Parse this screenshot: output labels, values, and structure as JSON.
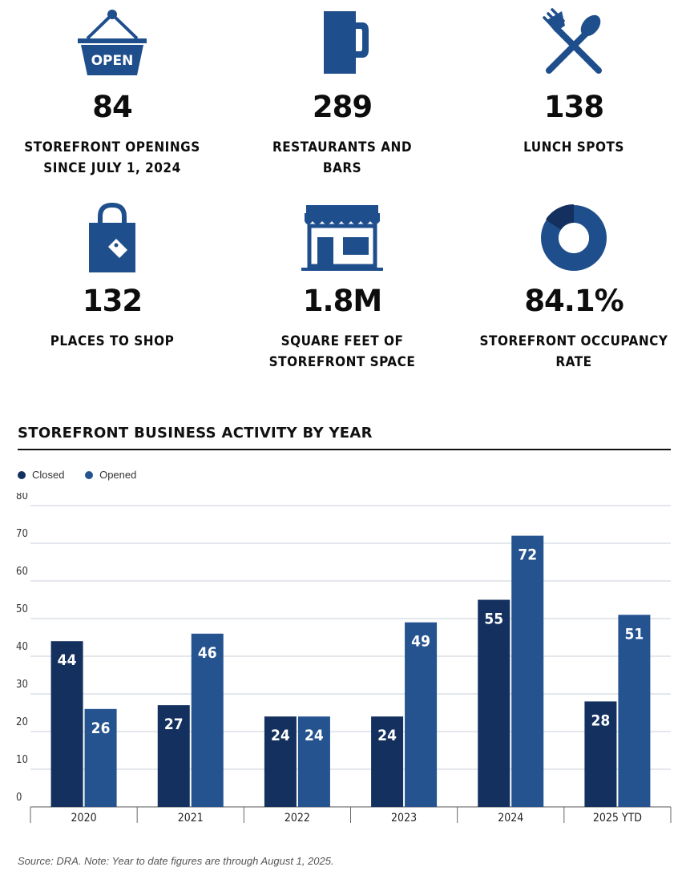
{
  "stats": [
    {
      "icon": "open-sign-icon",
      "value": "84",
      "label_line1": "STOREFRONT OPENINGS",
      "label_line2": "SINCE JULY 1, 2024"
    },
    {
      "icon": "beer-mug-icon",
      "value": "289",
      "label_line1": "RESTAURANTS AND",
      "label_line2": "BARS"
    },
    {
      "icon": "fork-spoon-icon",
      "value": "138",
      "label_line1": "LUNCH SPOTS",
      "label_line2": ""
    },
    {
      "icon": "shopping-bag-icon",
      "value": "132",
      "label_line1": "PLACES TO SHOP",
      "label_line2": ""
    },
    {
      "icon": "storefront-icon",
      "value": "1.8M",
      "label_line1": "SQUARE FEET OF",
      "label_line2": "STOREFRONT SPACE"
    },
    {
      "icon": "donut-chart-icon",
      "value": "84.1%",
      "label_line1": "STOREFRONT OCCUPANCY",
      "label_line2": "RATE"
    }
  ],
  "open_sign_text": "OPEN",
  "colors": {
    "brand": "#1f4e8c",
    "closed": "#13305e",
    "opened": "#245390",
    "grid": "#c9cfd8"
  },
  "chart_title": "STOREFRONT BUSINESS ACTIVITY BY YEAR",
  "source_note": "Source: DRA. Note: Year to date figures are through August 1, 2025.",
  "chart_data": {
    "type": "bar",
    "title": "STOREFRONT BUSINESS ACTIVITY BY YEAR",
    "categories": [
      "2020",
      "2021",
      "2022",
      "2023",
      "2024",
      "2025 YTD"
    ],
    "series": [
      {
        "name": "Closed",
        "values": [
          44,
          27,
          24,
          24,
          55,
          28
        ],
        "color": "#13305e"
      },
      {
        "name": "Opened",
        "values": [
          26,
          46,
          24,
          49,
          72,
          51
        ],
        "color": "#245390"
      }
    ],
    "ylim": [
      0,
      80
    ],
    "yticks": [
      0,
      10,
      20,
      30,
      40,
      50,
      60,
      70,
      80
    ],
    "grid": true,
    "legend": "top-left",
    "xlabel": "",
    "ylabel": ""
  }
}
